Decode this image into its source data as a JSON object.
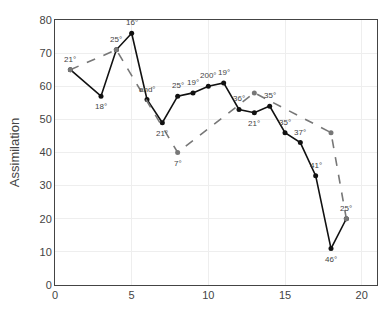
{
  "chart_data": {
    "type": "line",
    "ylabel": "Assimilation",
    "xlim": [
      0,
      21
    ],
    "ylim": [
      0,
      80
    ],
    "xticks": [
      0,
      5,
      10,
      15,
      20
    ],
    "yticks": [
      0,
      10,
      20,
      30,
      40,
      50,
      60,
      70,
      80
    ],
    "grid": true,
    "series": [
      {
        "x": [
          1,
          3,
          4,
          5,
          6,
          7,
          8,
          9,
          10,
          11,
          12,
          13,
          14,
          15,
          16,
          17,
          18,
          19
        ],
        "values": [
          65,
          57,
          71,
          76,
          56,
          49,
          57,
          58,
          60,
          61,
          53,
          52,
          54,
          46,
          43,
          33,
          11,
          20
        ],
        "color": "#111111",
        "line_style": "solid",
        "marker": "circle"
      },
      {
        "x": [
          1,
          4,
          8,
          13,
          18,
          19
        ],
        "values": [
          65,
          71,
          40,
          58,
          46,
          20
        ],
        "color": "#777777",
        "line_style": "dashed",
        "marker": "circle"
      }
    ],
    "annotations": [
      {
        "x": 1,
        "y": 65,
        "text": "21°"
      },
      {
        "x": 3,
        "y": 57,
        "text": "18°"
      },
      {
        "x": 4,
        "y": 71,
        "text": "25°"
      },
      {
        "x": 5,
        "y": 76,
        "text": "16°"
      },
      {
        "x": 6,
        "y": 56,
        "text": "and°"
      },
      {
        "x": 7,
        "y": 49,
        "text": "21°"
      },
      {
        "x": 8,
        "y": 57,
        "text": "25°"
      },
      {
        "x": 9,
        "y": 58,
        "text": "19°"
      },
      {
        "x": 10,
        "y": 60,
        "text": "200°"
      },
      {
        "x": 11,
        "y": 61,
        "text": "19°"
      },
      {
        "x": 12,
        "y": 53,
        "text": "36°"
      },
      {
        "x": 13,
        "y": 52,
        "text": "21°"
      },
      {
        "x": 14,
        "y": 54,
        "text": "35°"
      },
      {
        "x": 15,
        "y": 46,
        "text": "35°"
      },
      {
        "x": 16,
        "y": 43,
        "text": "37°"
      },
      {
        "x": 17,
        "y": 33,
        "text": "41°"
      },
      {
        "x": 18,
        "y": 11,
        "text": "46°"
      },
      {
        "x": 19,
        "y": 20,
        "text": "25°"
      },
      {
        "x": 8,
        "y": 40,
        "text": "7°"
      }
    ]
  }
}
